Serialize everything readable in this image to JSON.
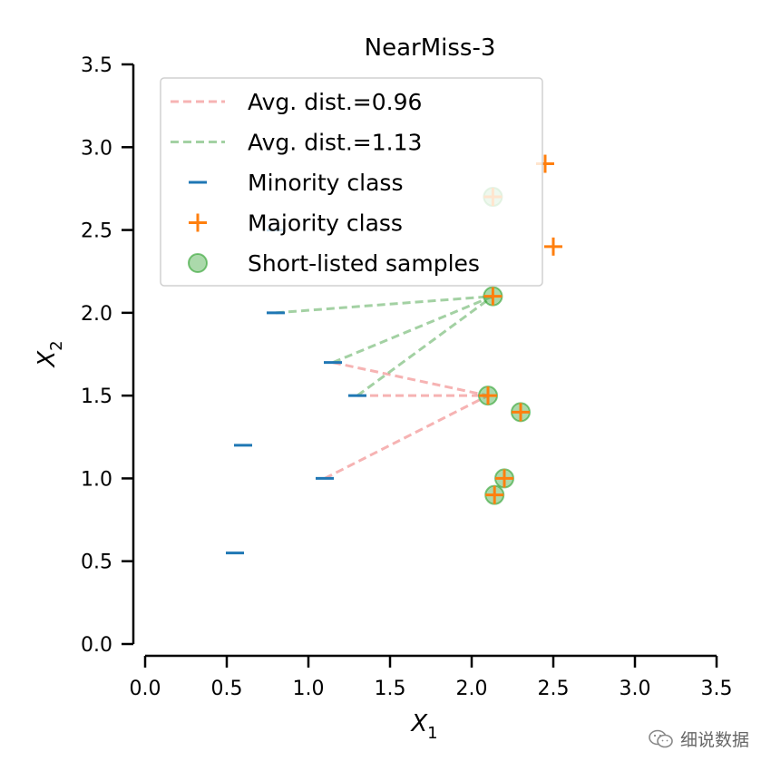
{
  "chart_data": {
    "type": "scatter",
    "title": "NearMiss-3",
    "xlabel": "X",
    "xlabel_sub": "1",
    "ylabel": "X",
    "ylabel_sub": "2",
    "xlim": [
      0,
      3.5
    ],
    "ylim": [
      0,
      3.5
    ],
    "xticks": [
      "0.0",
      "0.5",
      "1.0",
      "1.5",
      "2.0",
      "2.5",
      "3.0",
      "3.5"
    ],
    "yticks": [
      "0.0",
      "0.5",
      "1.0",
      "1.5",
      "2.0",
      "2.5",
      "3.0",
      "3.5"
    ],
    "grid": false,
    "legend_position": "upper-left",
    "series": [
      {
        "name": "Minority class",
        "marker": "_",
        "color": "#1f77b4",
        "points": [
          [
            0.55,
            0.55
          ],
          [
            0.6,
            1.2
          ],
          [
            1.1,
            1.0
          ],
          [
            1.15,
            1.7
          ],
          [
            1.3,
            1.5
          ],
          [
            0.8,
            2.0
          ],
          [
            0.8,
            2.5
          ]
        ]
      },
      {
        "name": "Majority class",
        "marker": "+",
        "color": "#ff7f0e",
        "points": [
          [
            2.1,
            1.5
          ],
          [
            2.13,
            2.1
          ],
          [
            2.3,
            1.4
          ],
          [
            2.2,
            1.0
          ],
          [
            2.14,
            0.9
          ],
          [
            2.13,
            2.7
          ],
          [
            2.45,
            2.9
          ],
          [
            2.5,
            2.4
          ]
        ]
      },
      {
        "name": "Short-listed samples",
        "marker": "o",
        "color": "#2ca02c",
        "points": [
          [
            2.1,
            1.5
          ],
          [
            2.13,
            2.1
          ],
          [
            2.3,
            1.4
          ],
          [
            2.2,
            1.0
          ],
          [
            2.14,
            0.9
          ],
          [
            2.13,
            2.7
          ]
        ]
      }
    ],
    "dashed_lines": [
      {
        "name": "Avg. dist.=0.96",
        "color": "#f08080",
        "segments": [
          [
            [
              1.1,
              1.0
            ],
            [
              2.1,
              1.5
            ]
          ],
          [
            [
              1.15,
              1.7
            ],
            [
              2.1,
              1.5
            ]
          ],
          [
            [
              1.3,
              1.5
            ],
            [
              2.1,
              1.5
            ]
          ]
        ]
      },
      {
        "name": "Avg. dist.=1.13",
        "color": "#66b266",
        "segments": [
          [
            [
              0.8,
              2.0
            ],
            [
              2.13,
              2.1
            ]
          ],
          [
            [
              1.15,
              1.7
            ],
            [
              2.13,
              2.1
            ]
          ],
          [
            [
              1.3,
              1.5
            ],
            [
              2.13,
              2.1
            ]
          ]
        ]
      }
    ],
    "legend": [
      {
        "label": "Avg. dist.=0.96",
        "kind": "dashed",
        "color": "#f08080"
      },
      {
        "label": "Avg. dist.=1.13",
        "kind": "dashed",
        "color": "#66b266"
      },
      {
        "label": "Minority class",
        "kind": "minus",
        "color": "#1f77b4"
      },
      {
        "label": "Majority class",
        "kind": "plus",
        "color": "#ff7f0e"
      },
      {
        "label": "Short-listed samples",
        "kind": "circle",
        "color": "#2ca02c"
      }
    ]
  },
  "watermark": {
    "text": "细说数据",
    "icon": "wechat-icon"
  }
}
